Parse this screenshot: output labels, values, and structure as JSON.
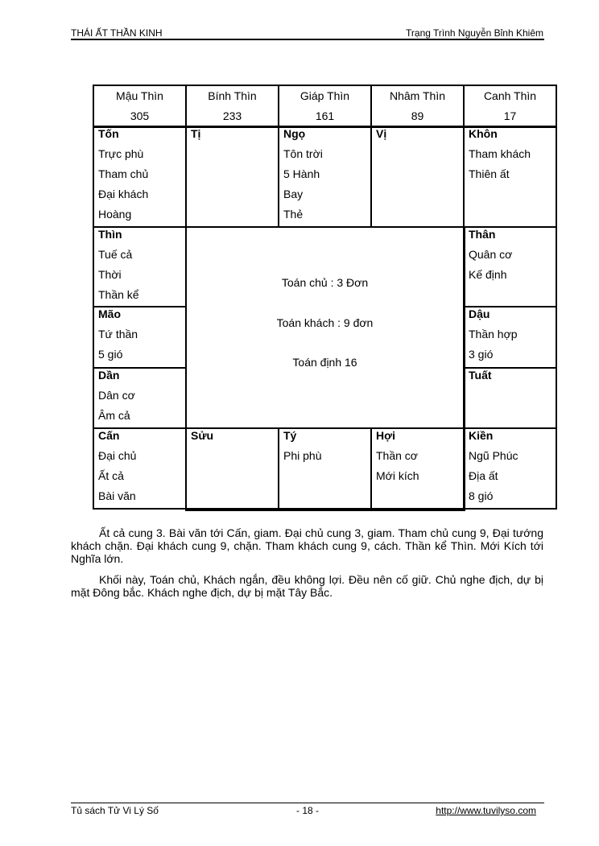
{
  "header": {
    "left": "THÁI ẤT THẦN KINH",
    "right": "Trạng Trình Nguyễn Bỉnh Khiêm"
  },
  "table": {
    "header_row": [
      {
        "name": "Mậu Thìn",
        "value": "305"
      },
      {
        "name": "Bính Thìn",
        "value": "233"
      },
      {
        "name": "Giáp Thìn",
        "value": "161"
      },
      {
        "name": "Nhâm Thìn",
        "value": "89"
      },
      {
        "name": "Canh Thìn",
        "value": "17"
      }
    ],
    "cells": {
      "ton": {
        "title": "Tốn",
        "lines": [
          "Trực phù",
          "Tham chủ",
          "Đại khách",
          "Hoàng"
        ]
      },
      "ti": {
        "title": "Tị",
        "lines": []
      },
      "ngo": {
        "title": "Ngọ",
        "lines": [
          "Tôn trời",
          "5 Hành",
          "Bay",
          "Thẻ"
        ]
      },
      "vi": {
        "title": "Vị",
        "lines": []
      },
      "khon": {
        "title": "Khôn",
        "lines": [
          "Tham khách",
          "Thiên ất"
        ]
      },
      "thin": {
        "title": "Thìn",
        "lines": [
          "Tuế cả",
          "Thời",
          "Thần kể"
        ]
      },
      "than": {
        "title": "Thân",
        "lines": [
          "Quân cơ",
          "Kế định"
        ]
      },
      "mao": {
        "title": "Mão",
        "lines": [
          "Tứ thần",
          "5 gió"
        ]
      },
      "dau": {
        "title": "Dậu",
        "lines": [
          "Thần hợp",
          "3 gió"
        ]
      },
      "dan": {
        "title": "Dần",
        "lines": [
          "Dân cơ",
          "Âm cả"
        ]
      },
      "tuat": {
        "title": "Tuất",
        "lines": []
      },
      "can": {
        "title": "Cấn",
        "lines": [
          "Đại chủ",
          "Ất cả",
          "Bài văn"
        ]
      },
      "suu": {
        "title": "Sửu",
        "lines": []
      },
      "ty": {
        "title": "Tý",
        "lines": [
          "Phi phù"
        ]
      },
      "hoi": {
        "title": "Hợi",
        "lines": [
          "Thần cơ",
          "Mới kích"
        ]
      },
      "kien": {
        "title": "Kiền",
        "lines": [
          "Ngũ Phúc",
          "Địa ất",
          "8 gió"
        ]
      }
    },
    "center": [
      "Toán chủ : 3 Đơn",
      "Toán khách : 9 đơn",
      "Toán định 16"
    ]
  },
  "paragraphs": [
    "Ất cả cung 3. Bài văn tới Cấn, giam. Đại chủ cung 3, giam. Tham chủ cung 9, Đại tướng khách chặn. Đại khách cung 9, chặn. Tham khách cung 9, cách. Thần kể Thìn. Mới Kích tới Nghĩa lớn.",
    "Khối này, Toán chủ, Khách ngắn, đều không lợi. Đều nên cố giữ. Chủ nghe địch, dự bị mặt Đông bắc. Khách nghe địch, dự bị mặt Tây Bắc."
  ],
  "footer": {
    "left": "Tủ sách Tử Vi Lý Số",
    "center": "- 18 -",
    "right": "http://www.tuvilyso.com"
  }
}
